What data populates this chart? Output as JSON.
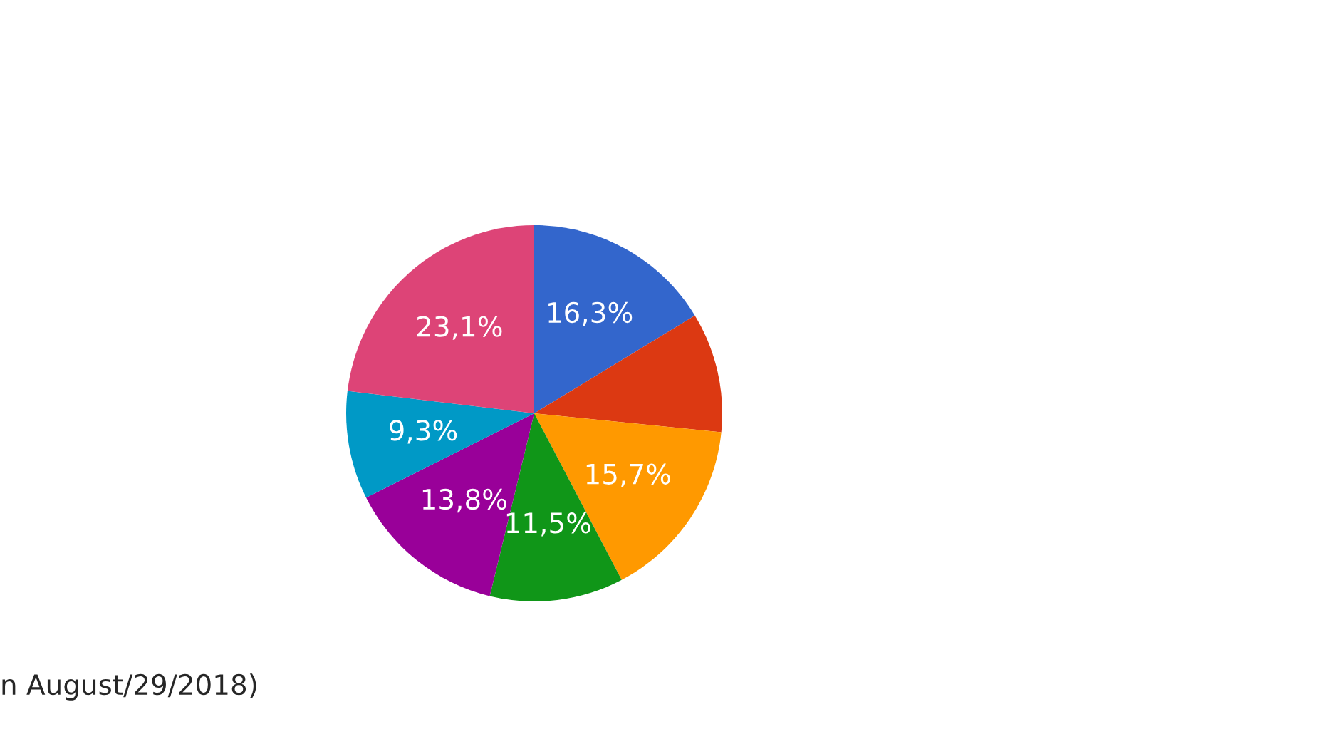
{
  "chart_data": {
    "type": "pie",
    "categories": [
      null,
      null,
      null,
      null,
      null,
      null,
      null
    ],
    "values": [
      16.3,
      10.3,
      15.7,
      11.5,
      13.8,
      9.3,
      23.1
    ],
    "value_labels": [
      "16,3%",
      null,
      "15,7%",
      "11,5%",
      "13,8%",
      "9,3%",
      "23,1%"
    ],
    "colors": [
      "#3366cc",
      "#dc3912",
      "#ff9900",
      "#109618",
      "#990099",
      "#0099c6",
      "#dd4477"
    ],
    "annotations": [
      "n August/29/2018)"
    ]
  }
}
